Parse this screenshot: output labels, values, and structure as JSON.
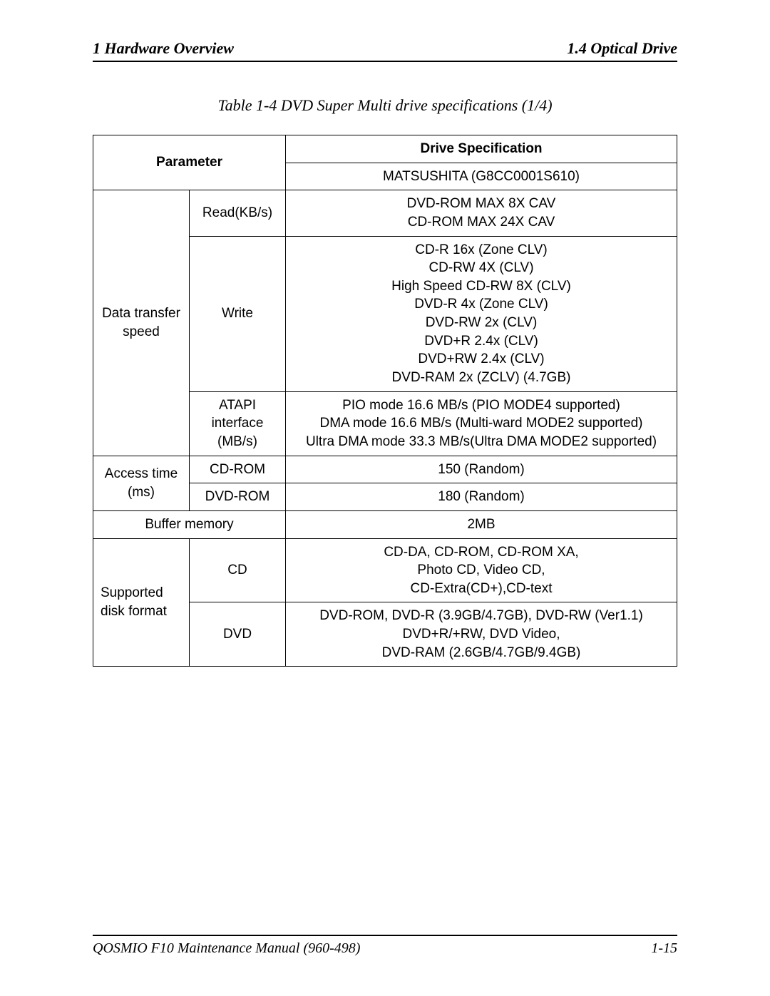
{
  "header": {
    "left": "1  Hardware Overview",
    "right": "1.4  Optical Drive"
  },
  "caption": "Table 1-4 DVD Super Multi drive specifications (1/4)",
  "table": {
    "head": {
      "parameter": "Parameter",
      "drive_spec": "Drive Specification",
      "model": "MATSUSHITA (G8CC0001S610)"
    },
    "rows": {
      "data_transfer_label": "Data transfer speed",
      "read_label": "Read(KB/s)",
      "read_value": "DVD-ROM MAX 8X CAV\nCD-ROM MAX 24X CAV",
      "write_label": "Write",
      "write_value": "CD-R 16x (Zone CLV)\nCD-RW 4X (CLV)\nHigh Speed CD-RW 8X (CLV)\nDVD-R 4x (Zone CLV)\nDVD-RW 2x (CLV)\nDVD+R 2.4x (CLV)\nDVD+RW 2.4x (CLV)\nDVD-RAM 2x (ZCLV) (4.7GB)",
      "atapi_label": "ATAPI interface (MB/s)",
      "atapi_value": "PIO mode 16.6 MB/s (PIO MODE4 supported)\nDMA mode 16.6 MB/s (Multi-ward MODE2 supported)\nUltra DMA mode 33.3 MB/s(Ultra DMA MODE2 supported)",
      "access_label": "Access time (ms)",
      "access_cd_label": "CD-ROM",
      "access_cd_value": "150 (Random)",
      "access_dvd_label": "DVD-ROM",
      "access_dvd_value": "180 (Random)",
      "buffer_label": "Buffer memory",
      "buffer_value": "2MB",
      "supported_label": "Supported disk format",
      "cd_label": "CD",
      "cd_value": "CD-DA, CD-ROM, CD-ROM XA,\nPhoto CD, Video CD,\nCD-Extra(CD+),CD-text",
      "dvd_label": "DVD",
      "dvd_value": "DVD-ROM, DVD-R (3.9GB/4.7GB), DVD-RW (Ver1.1)\nDVD+R/+RW, DVD Video,\nDVD-RAM (2.6GB/4.7GB/9.4GB)"
    }
  },
  "footer": {
    "left": "QOSMIO F10  Maintenance Manual (960-498)",
    "right": "1-15"
  }
}
